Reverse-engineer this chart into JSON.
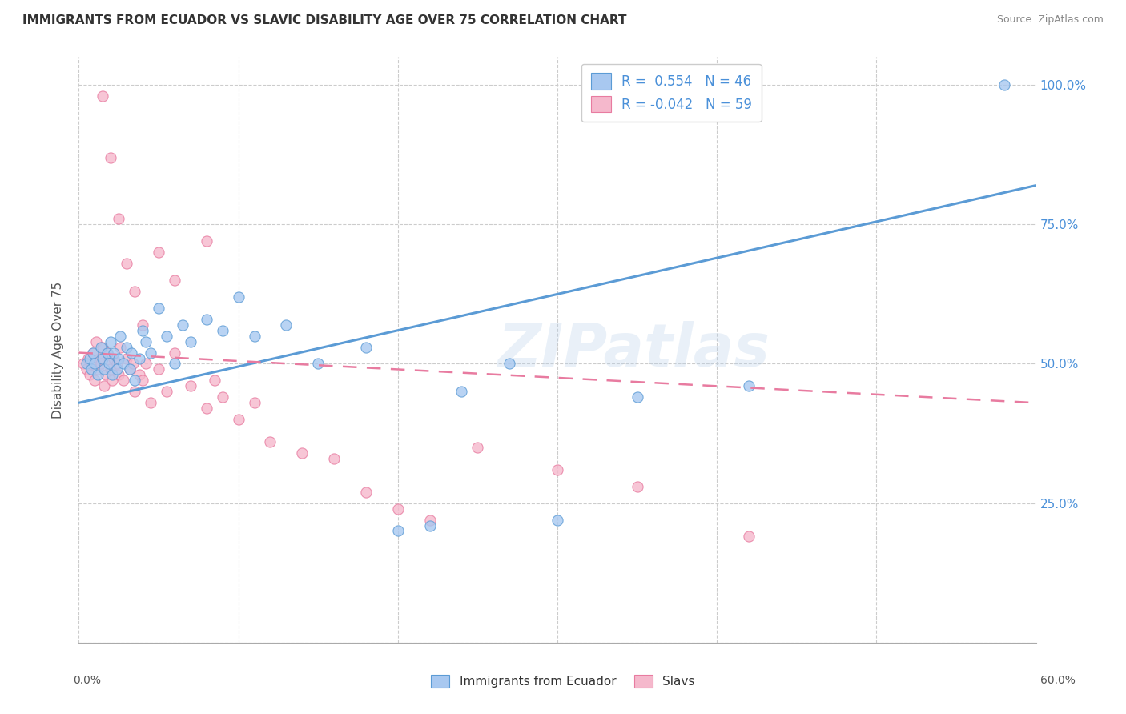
{
  "title": "IMMIGRANTS FROM ECUADOR VS SLAVIC DISABILITY AGE OVER 75 CORRELATION CHART",
  "source": "Source: ZipAtlas.com",
  "ylabel": "Disability Age Over 75",
  "ytick_labels": [
    "",
    "25.0%",
    "50.0%",
    "75.0%",
    "100.0%"
  ],
  "ytick_positions": [
    0.0,
    0.25,
    0.5,
    0.75,
    1.0
  ],
  "xlim": [
    0.0,
    0.6
  ],
  "ylim": [
    0.0,
    1.05
  ],
  "legend_label1": "Immigrants from Ecuador",
  "legend_label2": "Slavs",
  "R1": 0.554,
  "N1": 46,
  "R2": -0.042,
  "N2": 59,
  "color_blue": "#A8C8F0",
  "color_pink": "#F5B8CC",
  "color_blue_dark": "#5B9BD5",
  "color_pink_dark": "#E87BA0",
  "watermark": "ZIPatlas",
  "blue_line_x0": 0.0,
  "blue_line_y0": 0.43,
  "blue_line_x1": 0.6,
  "blue_line_y1": 0.82,
  "pink_line_x0": 0.0,
  "pink_line_y0": 0.52,
  "pink_line_x1": 0.6,
  "pink_line_y1": 0.43,
  "blue_scatter_x": [
    0.58,
    0.005,
    0.007,
    0.008,
    0.009,
    0.01,
    0.012,
    0.014,
    0.015,
    0.016,
    0.018,
    0.019,
    0.02,
    0.021,
    0.022,
    0.024,
    0.025,
    0.026,
    0.028,
    0.03,
    0.032,
    0.033,
    0.035,
    0.038,
    0.04,
    0.042,
    0.045,
    0.05,
    0.055,
    0.06,
    0.065,
    0.07,
    0.08,
    0.09,
    0.1,
    0.11,
    0.13,
    0.15,
    0.18,
    0.2,
    0.22,
    0.24,
    0.27,
    0.3,
    0.35,
    0.42
  ],
  "blue_scatter_y": [
    1.0,
    0.5,
    0.51,
    0.49,
    0.52,
    0.5,
    0.48,
    0.53,
    0.51,
    0.49,
    0.52,
    0.5,
    0.54,
    0.48,
    0.52,
    0.49,
    0.51,
    0.55,
    0.5,
    0.53,
    0.49,
    0.52,
    0.47,
    0.51,
    0.56,
    0.54,
    0.52,
    0.6,
    0.55,
    0.5,
    0.57,
    0.54,
    0.58,
    0.56,
    0.62,
    0.55,
    0.57,
    0.5,
    0.53,
    0.2,
    0.21,
    0.45,
    0.5,
    0.22,
    0.44,
    0.46
  ],
  "pink_scatter_x": [
    0.003,
    0.005,
    0.006,
    0.007,
    0.008,
    0.009,
    0.01,
    0.011,
    0.012,
    0.013,
    0.014,
    0.015,
    0.016,
    0.017,
    0.018,
    0.019,
    0.02,
    0.021,
    0.022,
    0.024,
    0.025,
    0.026,
    0.028,
    0.03,
    0.032,
    0.034,
    0.035,
    0.038,
    0.04,
    0.042,
    0.045,
    0.05,
    0.055,
    0.06,
    0.07,
    0.08,
    0.085,
    0.09,
    0.1,
    0.11,
    0.12,
    0.14,
    0.16,
    0.18,
    0.2,
    0.22,
    0.25,
    0.3,
    0.35,
    0.42,
    0.015,
    0.02,
    0.025,
    0.03,
    0.035,
    0.04,
    0.05,
    0.06,
    0.08
  ],
  "pink_scatter_y": [
    0.5,
    0.49,
    0.51,
    0.48,
    0.5,
    0.52,
    0.47,
    0.54,
    0.49,
    0.51,
    0.5,
    0.53,
    0.46,
    0.48,
    0.52,
    0.5,
    0.49,
    0.47,
    0.51,
    0.5,
    0.48,
    0.53,
    0.47,
    0.51,
    0.49,
    0.5,
    0.45,
    0.48,
    0.47,
    0.5,
    0.43,
    0.49,
    0.45,
    0.52,
    0.46,
    0.42,
    0.47,
    0.44,
    0.4,
    0.43,
    0.36,
    0.34,
    0.33,
    0.27,
    0.24,
    0.22,
    0.35,
    0.31,
    0.28,
    0.19,
    0.98,
    0.87,
    0.76,
    0.68,
    0.63,
    0.57,
    0.7,
    0.65,
    0.72
  ]
}
